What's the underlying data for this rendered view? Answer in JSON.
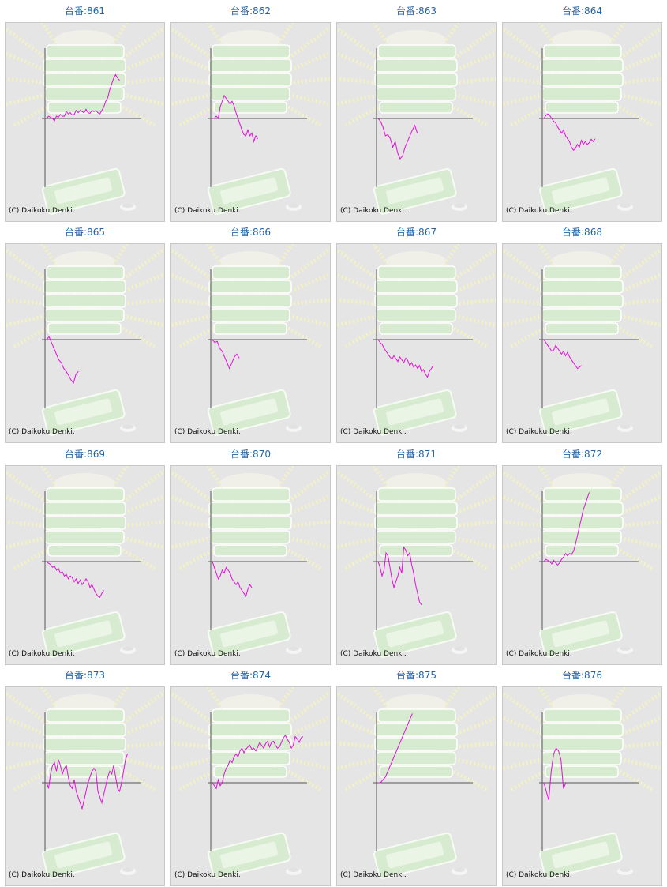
{
  "copyright": "(C) Daikoku Denki.",
  "colors": {
    "line": "#e010d8",
    "axis": "#555555",
    "title": "#2464a4",
    "panel": "#e5e5e5"
  },
  "chart_data": [
    {
      "type": "line",
      "title": "台番:861",
      "y": [
        0,
        4,
        2,
        0,
        -4,
        4,
        2,
        7,
        4,
        4,
        12,
        8,
        10,
        6,
        7,
        14,
        10,
        14,
        12,
        10,
        16,
        10,
        9,
        14,
        12,
        14,
        10,
        8,
        14,
        20,
        30,
        36,
        50,
        60,
        70,
        76,
        70,
        66
      ]
    },
    {
      "type": "line",
      "title": "台番:862",
      "y": [
        0,
        0,
        4,
        0,
        20,
        30,
        40,
        35,
        30,
        25,
        30,
        22,
        10,
        0,
        -10,
        -20,
        -28,
        -30,
        -20,
        -30,
        -25,
        -40,
        -30,
        -35
      ]
    },
    {
      "type": "line",
      "title": "台番:863",
      "y": [
        0,
        -5,
        -15,
        -30,
        -28,
        -35,
        -50,
        -40,
        -60,
        -70,
        -65,
        -50,
        -40,
        -30,
        -20,
        -12,
        -25
      ]
    },
    {
      "type": "line",
      "title": "台番:864",
      "y": [
        0,
        5,
        8,
        5,
        0,
        -5,
        -8,
        -15,
        -20,
        -25,
        -20,
        -30,
        -35,
        -40,
        -50,
        -55,
        -52,
        -45,
        -50,
        -38,
        -45,
        -40,
        -45,
        -42,
        -36,
        -40,
        -35
      ]
    },
    {
      "type": "line",
      "title": "台番:865",
      "y": [
        0,
        5,
        -5,
        -15,
        -25,
        -35,
        -40,
        -50,
        -55,
        -62,
        -70,
        -75,
        -60,
        -55
      ]
    },
    {
      "type": "line",
      "title": "台番:866",
      "y": [
        0,
        -5,
        -3,
        -15,
        -20,
        -30,
        -40,
        -50,
        -40,
        -30,
        -25,
        -32
      ]
    },
    {
      "type": "line",
      "title": "台番:867",
      "y": [
        0,
        -5,
        -8,
        -15,
        -20,
        -25,
        -30,
        -34,
        -28,
        -33,
        -38,
        -30,
        -35,
        -40,
        -32,
        -36,
        -45,
        -40,
        -48,
        -44,
        -50,
        -45,
        -55,
        -52,
        -60,
        -65,
        -55,
        -50,
        -45
      ]
    },
    {
      "type": "line",
      "title": "台番:868",
      "y": [
        0,
        -5,
        -10,
        -15,
        -20,
        -18,
        -10,
        -15,
        -20,
        -25,
        -20,
        -28,
        -22,
        -30,
        -35,
        -40,
        -45,
        -50,
        -48,
        -45
      ]
    },
    {
      "type": "line",
      "title": "台番:869",
      "y": [
        0,
        -3,
        -5,
        -10,
        -8,
        -15,
        -12,
        -20,
        -18,
        -25,
        -22,
        -30,
        -25,
        -28,
        -35,
        -30,
        -38,
        -32,
        -40,
        -35,
        -30,
        -35,
        -45,
        -40,
        -48,
        -55,
        -60,
        -62,
        -55,
        -50
      ]
    },
    {
      "type": "line",
      "title": "台番:870",
      "y": [
        0,
        -10,
        -20,
        -30,
        -25,
        -15,
        -20,
        -10,
        -15,
        -20,
        -30,
        -35,
        -40,
        -35,
        -45,
        -50,
        -55,
        -60,
        -48,
        -40,
        -45
      ]
    },
    {
      "type": "line",
      "title": "台番:871",
      "y": [
        0,
        -10,
        -25,
        -15,
        15,
        10,
        -10,
        -30,
        -45,
        -35,
        -25,
        -10,
        -20,
        25,
        20,
        10,
        15,
        -5,
        -20,
        -40,
        -55,
        -70,
        -75
      ]
    },
    {
      "type": "line",
      "title": "台番:872",
      "y": [
        0,
        4,
        2,
        0,
        -4,
        2,
        -2,
        -6,
        -2,
        4,
        8,
        14,
        10,
        14,
        12,
        18,
        30,
        45,
        60,
        75,
        90,
        100,
        110,
        120
      ]
    },
    {
      "type": "line",
      "title": "台番:873",
      "y": [
        0,
        -10,
        15,
        30,
        35,
        20,
        40,
        30,
        15,
        25,
        30,
        10,
        -5,
        -10,
        5,
        -15,
        -25,
        -35,
        -45,
        -30,
        -15,
        0,
        10,
        20,
        25,
        20,
        -15,
        -25,
        -35,
        -20,
        -5,
        10,
        20,
        15,
        30,
        10,
        -10,
        -15,
        0,
        20,
        40,
        50
      ]
    },
    {
      "type": "line",
      "title": "台番:874",
      "y": [
        0,
        -5,
        -10,
        5,
        -5,
        0,
        15,
        25,
        30,
        40,
        35,
        45,
        50,
        45,
        55,
        60,
        52,
        58,
        62,
        65,
        58,
        60,
        55,
        62,
        70,
        65,
        60,
        68,
        72,
        62,
        70,
        72,
        65,
        60,
        62,
        70,
        78,
        82,
        75,
        70,
        60,
        65,
        80,
        76,
        70,
        78,
        80
      ]
    },
    {
      "type": "line",
      "title": "台番:875",
      "y": [
        0,
        0,
        5,
        10,
        20,
        30,
        40,
        50,
        60,
        70,
        80,
        90,
        100,
        110,
        120
      ]
    },
    {
      "type": "line",
      "title": "台番:876",
      "y": [
        0,
        -15,
        -30,
        20,
        50,
        60,
        55,
        40,
        -10,
        0
      ]
    }
  ]
}
